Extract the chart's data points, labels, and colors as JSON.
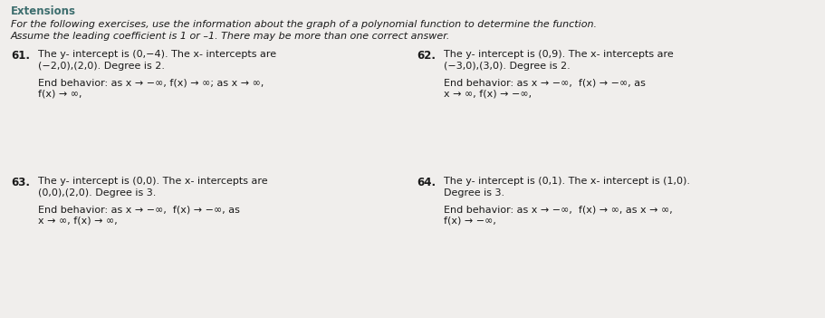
{
  "bg_color": "#f0eeec",
  "header": "Extensions",
  "header_color": "#3d6e6e",
  "text_color": "#1a1a1a",
  "title1": "For the following exercises, use the information about the graph of a polynomial function to determine the function.",
  "title2": "Assume the leading coefficient is 1 or –1. There may be more than one correct answer.",
  "q61_num": "61.",
  "q61_line1": "The y- intercept is (0,−4). The x- intercepts are",
  "q61_line2": "(−2,0),(2,0). Degree is 2.",
  "q61_line3": "End behavior: as x → −∞, f(x) → ∞; as x → ∞,",
  "q61_line4": "f(x) → ∞,",
  "q62_num": "62.",
  "q62_line1": "The y- intercept is (0,9). The x- intercepts are",
  "q62_line2": "(−3,0),(3,0). Degree is 2.",
  "q62_line3": "End behavior: as x → −∞,  f(x) → −∞, as",
  "q62_line4": "x → ∞, f(x) → −∞,",
  "q63_num": "63.",
  "q63_line1": "The y- intercept is (0,0). The x- intercepts are",
  "q63_line2": "(0,0),(2,0). Degree is 3.",
  "q63_line3": "End behavior: as x → −∞,  f(x) → −∞, as",
  "q63_line4": "x → ∞, f(x) → ∞,",
  "q64_num": "64.",
  "q64_line1": "The y- intercept is (0,1). The x- intercept is (1,0).",
  "q64_line2": "Degree is 3.",
  "q64_line3": "End behavior: as x → −∞,  f(x) → ∞, as x → ∞,",
  "q64_line4": "f(x) → −∞,"
}
